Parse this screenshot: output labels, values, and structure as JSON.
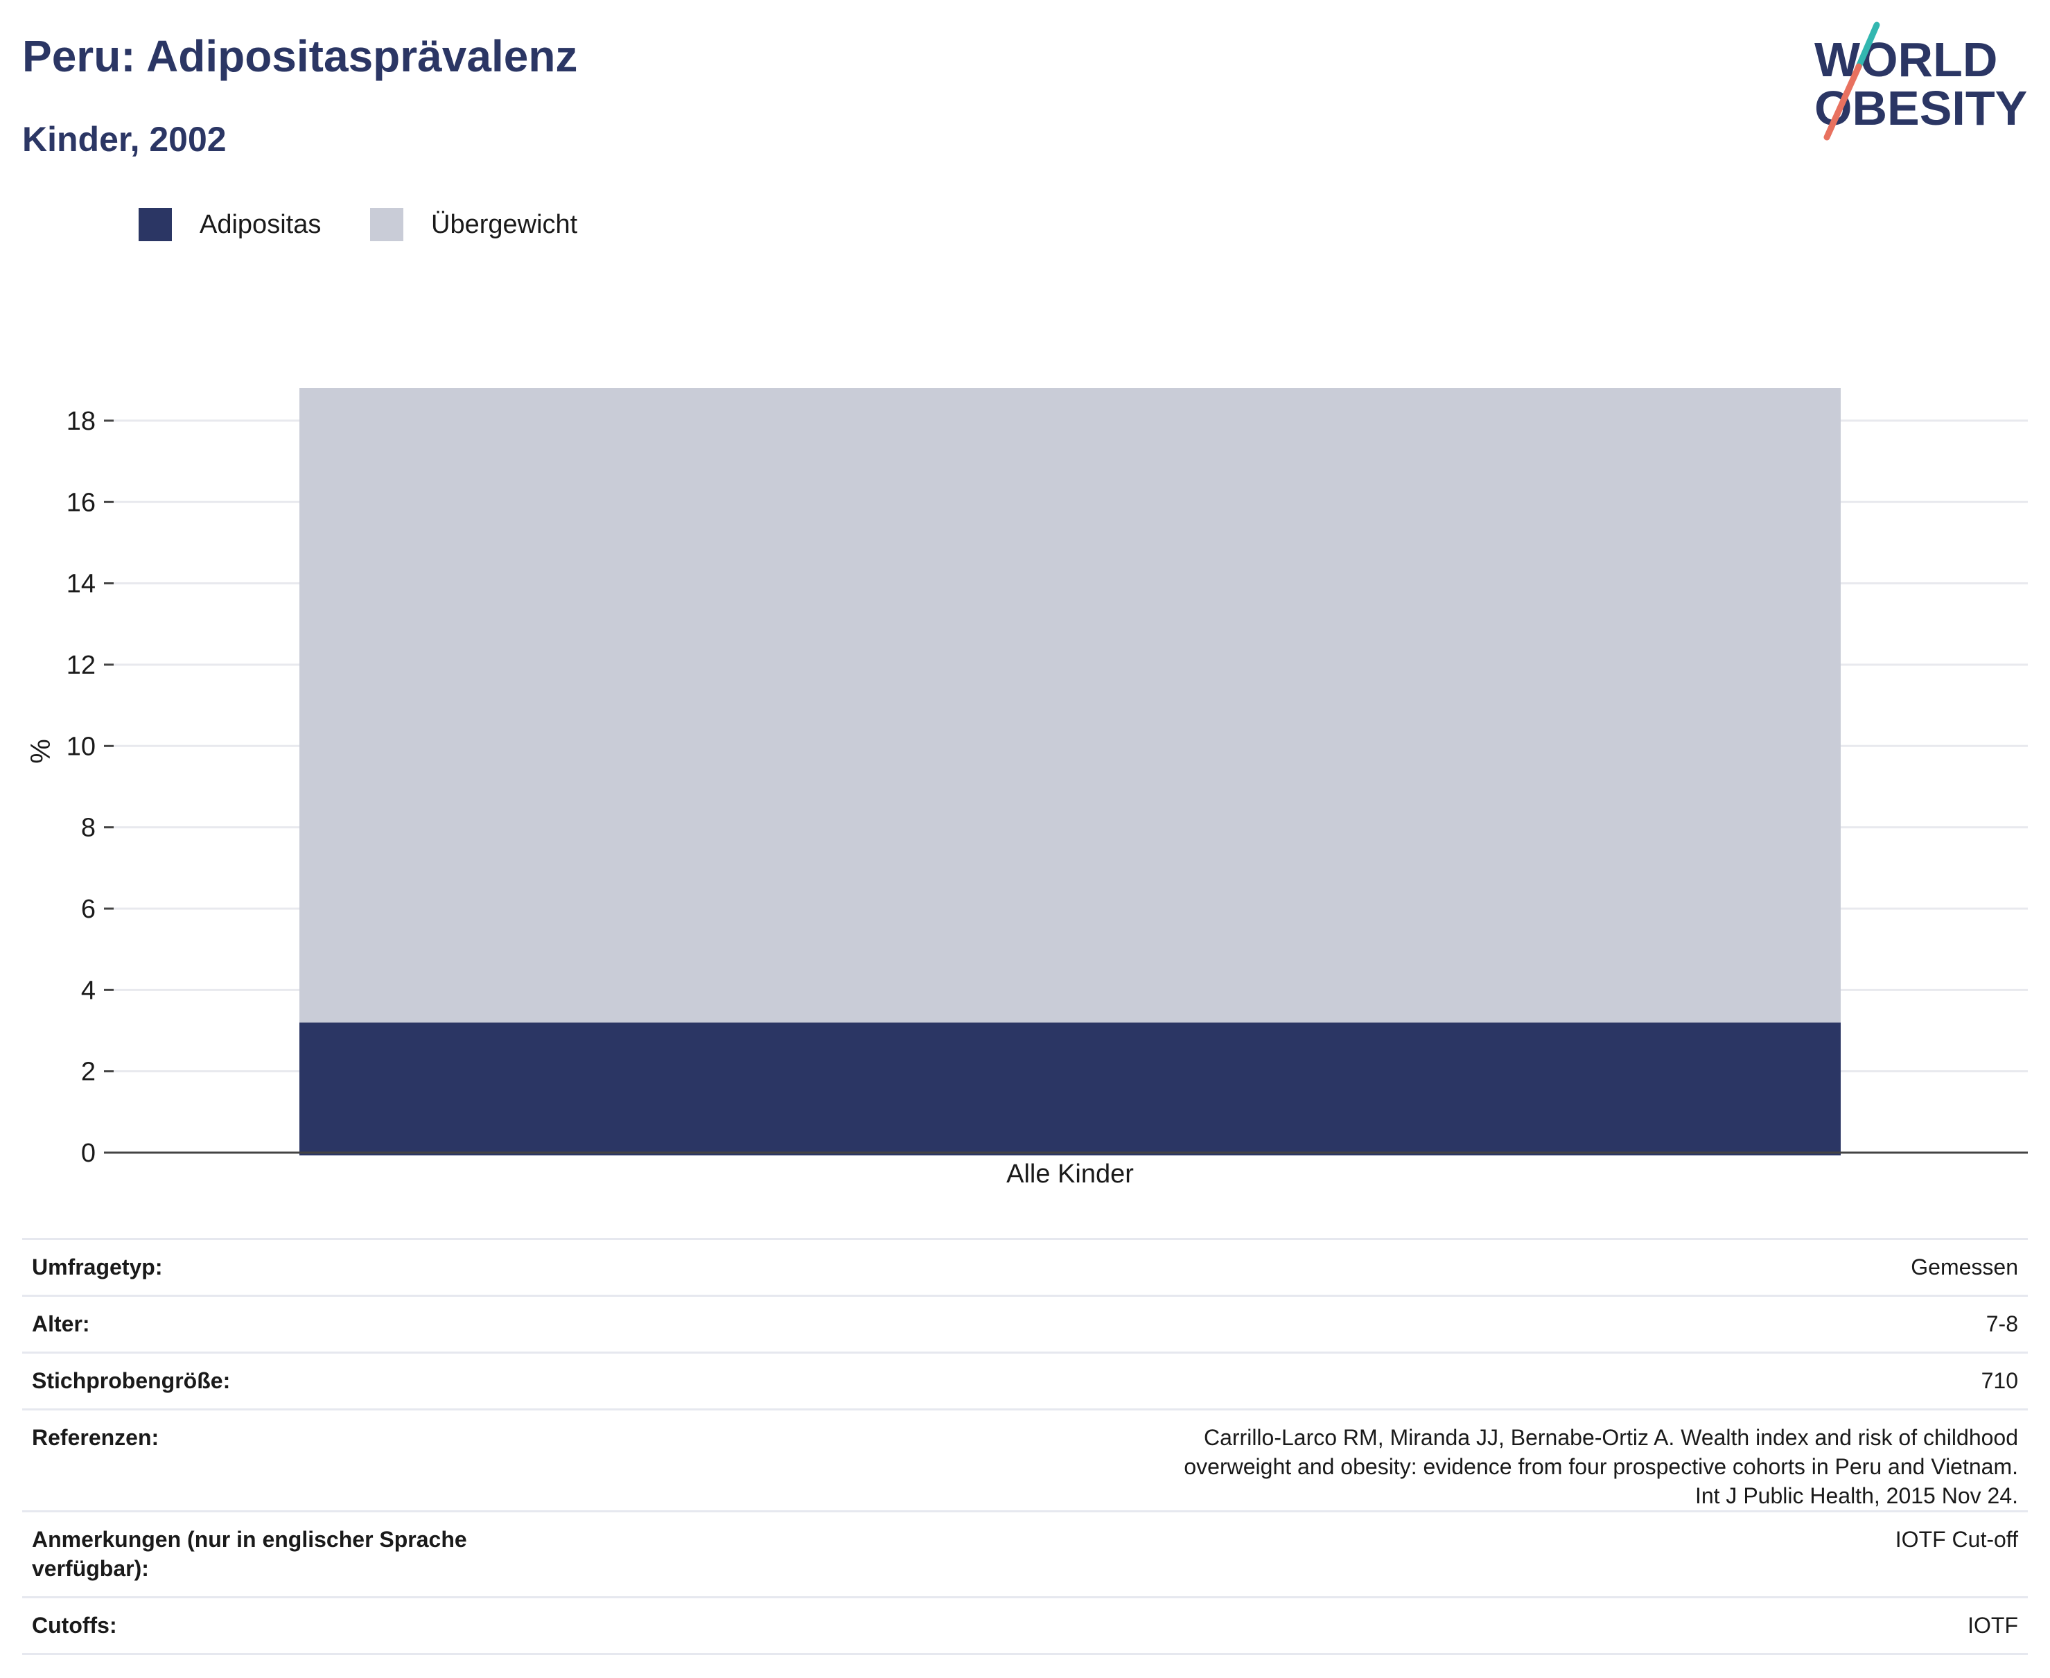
{
  "header": {
    "title": "Peru: Adipositasprävalenz",
    "subtitle": "Kinder, 2002"
  },
  "logo": {
    "line1": "WORLD",
    "line2": "OBESITY",
    "accent_teal": "#33b7b0",
    "accent_coral": "#e8715f"
  },
  "legend": [
    {
      "label": "Adipositas",
      "color": "#2b3664"
    },
    {
      "label": "Übergewicht",
      "color": "#c9ccd7"
    }
  ],
  "chart_data": {
    "type": "bar",
    "stacked": true,
    "categories": [
      "Alle Kinder"
    ],
    "series": [
      {
        "name": "Adipositas",
        "values": [
          3.2
        ],
        "color": "#2b3664"
      },
      {
        "name": "Übergewicht",
        "values": [
          15.6
        ],
        "color": "#c9ccd7"
      }
    ],
    "ylabel": "%",
    "xlabel": "",
    "ylim": [
      0,
      18.8
    ],
    "yticks": [
      0,
      2,
      4,
      6,
      8,
      10,
      12,
      14,
      16,
      18
    ],
    "grid": true,
    "legend_position": "top-left"
  },
  "details": [
    {
      "label": "Umfragetyp:",
      "value": "Gemessen"
    },
    {
      "label": "Alter:",
      "value": "7-8"
    },
    {
      "label": "Stichprobengröße:",
      "value": "710"
    },
    {
      "label": "Referenzen:",
      "value": "Carrillo-Larco RM, Miranda JJ, Bernabe-Ortiz A. Wealth index and risk of childhood overweight and obesity: evidence from four prospective cohorts in Peru and Vietnam. Int J Public Health, 2015 Nov 24."
    },
    {
      "label": "Anmerkungen (nur in englischer Sprache verfügbar):",
      "value": "IOTF Cut-off"
    },
    {
      "label": "Cutoffs:",
      "value": "IOTF"
    }
  ]
}
